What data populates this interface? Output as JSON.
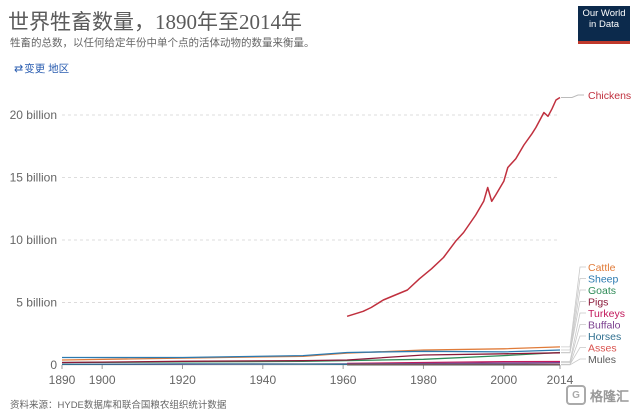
{
  "header": {
    "title": "世界牲畜数量，1890年至2014年",
    "subtitle": "牲畜的总数，以任何给定年份中单个点的活体动物的数量来衡量。",
    "logo_line1": "Our World",
    "logo_line2": "in Data"
  },
  "controls": {
    "change_region_label": "变更 地区"
  },
  "footer": {
    "source": "资料来源：HYDE数据库和联合国粮农组织统计数据"
  },
  "watermark": {
    "text": "格隆汇",
    "symbol": "G"
  },
  "colors": {
    "Chickens": "#c0303e",
    "Cattle": "#e07b39",
    "Sheep": "#2b7ab0",
    "Goats": "#2e8b57",
    "Pigs": "#8b1a3a",
    "Turkeys": "#c2185b",
    "Buffalo": "#7b3f8f",
    "Horses": "#2f6f8f",
    "Asses": "#d9534f",
    "Mules": "#5a5a5a"
  },
  "chart_data": {
    "type": "line",
    "title": "世界牲畜数量，1890年至2014年",
    "ylim": [
      0,
      22000000000
    ],
    "yticks": [
      {
        "value": 0,
        "label": "0"
      },
      {
        "value": 5000000000,
        "label": "5 billion"
      },
      {
        "value": 10000000000,
        "label": "10 billion"
      },
      {
        "value": 15000000000,
        "label": "15 billion"
      },
      {
        "value": 20000000000,
        "label": "20 billion"
      }
    ],
    "xlim": [
      1890,
      2014
    ],
    "xticks": [
      1890,
      1900,
      1920,
      1940,
      1960,
      1980,
      2000,
      2014
    ],
    "grid": true,
    "legend": "right",
    "series": [
      {
        "name": "Chickens",
        "x": [
          1961,
          1963,
          1965,
          1967,
          1970,
          1973,
          1976,
          1979,
          1982,
          1985,
          1988,
          1990,
          1993,
          1995,
          1996,
          1997,
          1998,
          2000,
          2001,
          2003,
          2005,
          2007,
          2008,
          2009,
          2010,
          2011,
          2012,
          2013,
          2014
        ],
        "y": [
          3900000000.0,
          4100000000.0,
          4300000000.0,
          4600000000.0,
          5200000000.0,
          5600000000.0,
          6000000000.0,
          6900000000.0,
          7700000000.0,
          8600000000.0,
          9900000000.0,
          10600000000.0,
          12000000000.0,
          13100000000.0,
          14200000000.0,
          13100000000.0,
          13600000000.0,
          14700000000.0,
          15800000000.0,
          16500000000.0,
          17600000000.0,
          18500000000.0,
          19000000000.0,
          19600000000.0,
          20200000000.0,
          19900000000.0,
          20500000000.0,
          21200000000.0,
          21400000000.0
        ]
      },
      {
        "name": "Cattle",
        "x": [
          1890,
          1920,
          1950,
          1961,
          1980,
          2000,
          2014
        ],
        "y": [
          400000000.0,
          550000000.0,
          700000000.0,
          950000000.0,
          1200000000.0,
          1300000000.0,
          1450000000.0
        ]
      },
      {
        "name": "Sheep",
        "x": [
          1890,
          1920,
          1950,
          1961,
          1980,
          2000,
          2014
        ],
        "y": [
          600000000.0,
          600000000.0,
          750000000.0,
          1000000000.0,
          1100000000.0,
          1050000000.0,
          1200000000.0
        ]
      },
      {
        "name": "Goats",
        "x": [
          1890,
          1920,
          1950,
          1961,
          1980,
          2000,
          2014
        ],
        "y": [
          200000000.0,
          250000000.0,
          300000000.0,
          350000000.0,
          460000000.0,
          750000000.0,
          1000000000.0
        ]
      },
      {
        "name": "Pigs",
        "x": [
          1890,
          1920,
          1950,
          1961,
          1980,
          2000,
          2014
        ],
        "y": [
          200000000.0,
          300000000.0,
          350000000.0,
          400000000.0,
          800000000.0,
          900000000.0,
          980000000.0
        ]
      },
      {
        "name": "Turkeys",
        "x": [
          1961,
          1980,
          2000,
          2014
        ],
        "y": [
          130000000.0,
          200000000.0,
          270000000.0,
          280000000.0
        ]
      },
      {
        "name": "Buffalo",
        "x": [
          1890,
          1950,
          1961,
          1980,
          2000,
          2014
        ],
        "y": [
          50000000.0,
          80000000.0,
          90000000.0,
          120000000.0,
          160000000.0,
          190000000.0
        ]
      },
      {
        "name": "Horses",
        "x": [
          1890,
          1920,
          1950,
          1961,
          1980,
          2000,
          2014
        ],
        "y": [
          50000000.0,
          90000000.0,
          70000000.0,
          60000000.0,
          60000000.0,
          55000000.0,
          58000000.0
        ]
      },
      {
        "name": "Asses",
        "x": [
          1961,
          1980,
          2000,
          2014
        ],
        "y": [
          40000000.0,
          40000000.0,
          41000000.0,
          44000000.0
        ]
      },
      {
        "name": "Mules",
        "x": [
          1961,
          1980,
          2000,
          2014
        ],
        "y": [
          12000000.0,
          12000000.0,
          13000000.0,
          10000000.0
        ]
      }
    ]
  }
}
